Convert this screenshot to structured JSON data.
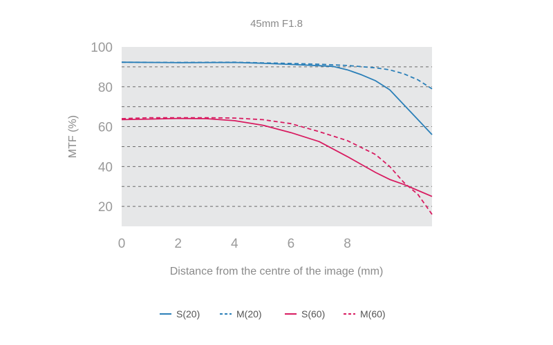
{
  "chart_data": {
    "type": "line",
    "title": "45mm F1.8",
    "xlabel": "Distance from the centre of the image (mm)",
    "ylabel": "MTF (%)",
    "xlim": [
      0,
      11
    ],
    "ylim": [
      10,
      100
    ],
    "x_ticks": [
      0,
      2,
      4,
      6,
      8
    ],
    "y_ticks": [
      20,
      40,
      60,
      80,
      100
    ],
    "grid_y": [
      20,
      30,
      40,
      50,
      60,
      70,
      80,
      90
    ],
    "legend_position": "bottom",
    "series": [
      {
        "name": "S(20)",
        "color": "#2a7fb8",
        "dash": "solid",
        "points": [
          [
            0,
            92.3
          ],
          [
            2,
            92.1
          ],
          [
            4,
            92.2
          ],
          [
            5,
            91.8
          ],
          [
            6,
            91.2
          ],
          [
            7,
            90.6
          ],
          [
            7.5,
            90.2
          ],
          [
            8,
            88.5
          ],
          [
            8.5,
            86
          ],
          [
            9,
            83
          ],
          [
            9.5,
            78.5
          ],
          [
            10,
            71
          ],
          [
            10.5,
            63.5
          ],
          [
            11,
            56
          ]
        ]
      },
      {
        "name": "M(20)",
        "color": "#2a7fb8",
        "dash": "dashed",
        "points": [
          [
            0,
            92.3
          ],
          [
            2,
            92.2
          ],
          [
            4,
            92.3
          ],
          [
            5,
            92
          ],
          [
            6,
            91.7
          ],
          [
            7,
            91.3
          ],
          [
            8,
            90.7
          ],
          [
            9,
            89.5
          ],
          [
            9.5,
            88.5
          ],
          [
            10,
            86.5
          ],
          [
            10.5,
            83.5
          ],
          [
            11,
            79
          ]
        ]
      },
      {
        "name": "S(60)",
        "color": "#d81b60",
        "dash": "solid",
        "points": [
          [
            0,
            63.5
          ],
          [
            1,
            63.8
          ],
          [
            2,
            64.1
          ],
          [
            3,
            64
          ],
          [
            4,
            63
          ],
          [
            5,
            60.7
          ],
          [
            6,
            57
          ],
          [
            7,
            52.5
          ],
          [
            8,
            45
          ],
          [
            9,
            37
          ],
          [
            9.5,
            33.5
          ],
          [
            10,
            31
          ],
          [
            10.5,
            28
          ],
          [
            11,
            25
          ]
        ]
      },
      {
        "name": "M(60)",
        "color": "#d81b60",
        "dash": "dashed",
        "points": [
          [
            0,
            64
          ],
          [
            1,
            64.5
          ],
          [
            2,
            64.5
          ],
          [
            3,
            64.5
          ],
          [
            4,
            64.3
          ],
          [
            5,
            63.5
          ],
          [
            6,
            61.5
          ],
          [
            7,
            57.5
          ],
          [
            8,
            53
          ],
          [
            9,
            46
          ],
          [
            9.5,
            40
          ],
          [
            10,
            32
          ],
          [
            10.5,
            26
          ],
          [
            11,
            16
          ]
        ]
      }
    ]
  }
}
